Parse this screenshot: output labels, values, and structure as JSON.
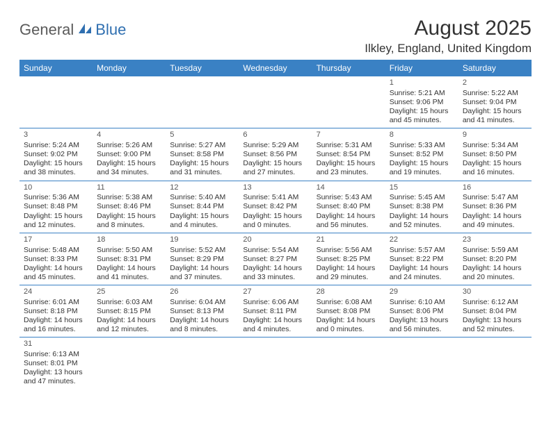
{
  "logo": {
    "part1": "General",
    "part2": "Blue"
  },
  "title": "August 2025",
  "location": "Ilkley, England, United Kingdom",
  "colors": {
    "header_bg": "#3a81c4",
    "header_text": "#ffffff",
    "border": "#3a81c4",
    "text": "#333333",
    "logo_gray": "#5a5a5a",
    "logo_blue": "#2f6fb0"
  },
  "weekdays": [
    "Sunday",
    "Monday",
    "Tuesday",
    "Wednesday",
    "Thursday",
    "Friday",
    "Saturday"
  ],
  "weeks": [
    [
      null,
      null,
      null,
      null,
      null,
      {
        "d": "1",
        "sr": "Sunrise: 5:21 AM",
        "ss": "Sunset: 9:06 PM",
        "dl1": "Daylight: 15 hours",
        "dl2": "and 45 minutes."
      },
      {
        "d": "2",
        "sr": "Sunrise: 5:22 AM",
        "ss": "Sunset: 9:04 PM",
        "dl1": "Daylight: 15 hours",
        "dl2": "and 41 minutes."
      }
    ],
    [
      {
        "d": "3",
        "sr": "Sunrise: 5:24 AM",
        "ss": "Sunset: 9:02 PM",
        "dl1": "Daylight: 15 hours",
        "dl2": "and 38 minutes."
      },
      {
        "d": "4",
        "sr": "Sunrise: 5:26 AM",
        "ss": "Sunset: 9:00 PM",
        "dl1": "Daylight: 15 hours",
        "dl2": "and 34 minutes."
      },
      {
        "d": "5",
        "sr": "Sunrise: 5:27 AM",
        "ss": "Sunset: 8:58 PM",
        "dl1": "Daylight: 15 hours",
        "dl2": "and 31 minutes."
      },
      {
        "d": "6",
        "sr": "Sunrise: 5:29 AM",
        "ss": "Sunset: 8:56 PM",
        "dl1": "Daylight: 15 hours",
        "dl2": "and 27 minutes."
      },
      {
        "d": "7",
        "sr": "Sunrise: 5:31 AM",
        "ss": "Sunset: 8:54 PM",
        "dl1": "Daylight: 15 hours",
        "dl2": "and 23 minutes."
      },
      {
        "d": "8",
        "sr": "Sunrise: 5:33 AM",
        "ss": "Sunset: 8:52 PM",
        "dl1": "Daylight: 15 hours",
        "dl2": "and 19 minutes."
      },
      {
        "d": "9",
        "sr": "Sunrise: 5:34 AM",
        "ss": "Sunset: 8:50 PM",
        "dl1": "Daylight: 15 hours",
        "dl2": "and 16 minutes."
      }
    ],
    [
      {
        "d": "10",
        "sr": "Sunrise: 5:36 AM",
        "ss": "Sunset: 8:48 PM",
        "dl1": "Daylight: 15 hours",
        "dl2": "and 12 minutes."
      },
      {
        "d": "11",
        "sr": "Sunrise: 5:38 AM",
        "ss": "Sunset: 8:46 PM",
        "dl1": "Daylight: 15 hours",
        "dl2": "and 8 minutes."
      },
      {
        "d": "12",
        "sr": "Sunrise: 5:40 AM",
        "ss": "Sunset: 8:44 PM",
        "dl1": "Daylight: 15 hours",
        "dl2": "and 4 minutes."
      },
      {
        "d": "13",
        "sr": "Sunrise: 5:41 AM",
        "ss": "Sunset: 8:42 PM",
        "dl1": "Daylight: 15 hours",
        "dl2": "and 0 minutes."
      },
      {
        "d": "14",
        "sr": "Sunrise: 5:43 AM",
        "ss": "Sunset: 8:40 PM",
        "dl1": "Daylight: 14 hours",
        "dl2": "and 56 minutes."
      },
      {
        "d": "15",
        "sr": "Sunrise: 5:45 AM",
        "ss": "Sunset: 8:38 PM",
        "dl1": "Daylight: 14 hours",
        "dl2": "and 52 minutes."
      },
      {
        "d": "16",
        "sr": "Sunrise: 5:47 AM",
        "ss": "Sunset: 8:36 PM",
        "dl1": "Daylight: 14 hours",
        "dl2": "and 49 minutes."
      }
    ],
    [
      {
        "d": "17",
        "sr": "Sunrise: 5:48 AM",
        "ss": "Sunset: 8:33 PM",
        "dl1": "Daylight: 14 hours",
        "dl2": "and 45 minutes."
      },
      {
        "d": "18",
        "sr": "Sunrise: 5:50 AM",
        "ss": "Sunset: 8:31 PM",
        "dl1": "Daylight: 14 hours",
        "dl2": "and 41 minutes."
      },
      {
        "d": "19",
        "sr": "Sunrise: 5:52 AM",
        "ss": "Sunset: 8:29 PM",
        "dl1": "Daylight: 14 hours",
        "dl2": "and 37 minutes."
      },
      {
        "d": "20",
        "sr": "Sunrise: 5:54 AM",
        "ss": "Sunset: 8:27 PM",
        "dl1": "Daylight: 14 hours",
        "dl2": "and 33 minutes."
      },
      {
        "d": "21",
        "sr": "Sunrise: 5:56 AM",
        "ss": "Sunset: 8:25 PM",
        "dl1": "Daylight: 14 hours",
        "dl2": "and 29 minutes."
      },
      {
        "d": "22",
        "sr": "Sunrise: 5:57 AM",
        "ss": "Sunset: 8:22 PM",
        "dl1": "Daylight: 14 hours",
        "dl2": "and 24 minutes."
      },
      {
        "d": "23",
        "sr": "Sunrise: 5:59 AM",
        "ss": "Sunset: 8:20 PM",
        "dl1": "Daylight: 14 hours",
        "dl2": "and 20 minutes."
      }
    ],
    [
      {
        "d": "24",
        "sr": "Sunrise: 6:01 AM",
        "ss": "Sunset: 8:18 PM",
        "dl1": "Daylight: 14 hours",
        "dl2": "and 16 minutes."
      },
      {
        "d": "25",
        "sr": "Sunrise: 6:03 AM",
        "ss": "Sunset: 8:15 PM",
        "dl1": "Daylight: 14 hours",
        "dl2": "and 12 minutes."
      },
      {
        "d": "26",
        "sr": "Sunrise: 6:04 AM",
        "ss": "Sunset: 8:13 PM",
        "dl1": "Daylight: 14 hours",
        "dl2": "and 8 minutes."
      },
      {
        "d": "27",
        "sr": "Sunrise: 6:06 AM",
        "ss": "Sunset: 8:11 PM",
        "dl1": "Daylight: 14 hours",
        "dl2": "and 4 minutes."
      },
      {
        "d": "28",
        "sr": "Sunrise: 6:08 AM",
        "ss": "Sunset: 8:08 PM",
        "dl1": "Daylight: 14 hours",
        "dl2": "and 0 minutes."
      },
      {
        "d": "29",
        "sr": "Sunrise: 6:10 AM",
        "ss": "Sunset: 8:06 PM",
        "dl1": "Daylight: 13 hours",
        "dl2": "and 56 minutes."
      },
      {
        "d": "30",
        "sr": "Sunrise: 6:12 AM",
        "ss": "Sunset: 8:04 PM",
        "dl1": "Daylight: 13 hours",
        "dl2": "and 52 minutes."
      }
    ],
    [
      {
        "d": "31",
        "sr": "Sunrise: 6:13 AM",
        "ss": "Sunset: 8:01 PM",
        "dl1": "Daylight: 13 hours",
        "dl2": "and 47 minutes."
      },
      null,
      null,
      null,
      null,
      null,
      null
    ]
  ]
}
